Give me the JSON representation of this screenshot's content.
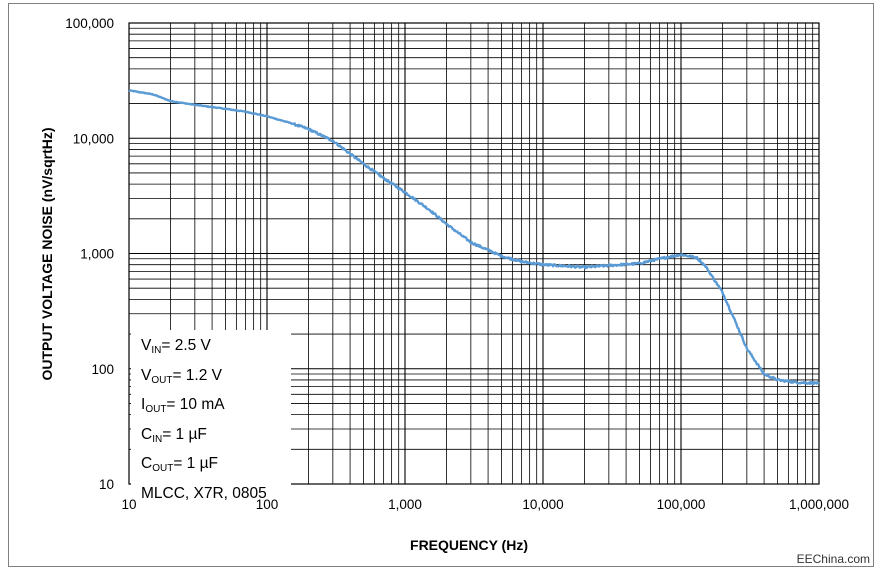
{
  "chart_data": {
    "type": "line",
    "title": "",
    "xlabel": "FREQUENCY (Hz)",
    "ylabel": "OUTPUT VOLTAGE NOISE (nV/sqrtHz)",
    "xscale": "log",
    "yscale": "log",
    "xlim": [
      10,
      1000000
    ],
    "ylim": [
      10,
      100000
    ],
    "x_tick_labels": [
      "10",
      "100",
      "1,000",
      "10,000",
      "100,000",
      "1,000,000"
    ],
    "y_tick_labels": [
      "100,000",
      "10,000",
      "1,000",
      "100",
      "10"
    ],
    "grid": true,
    "legend_position": "bottom-left",
    "series": [
      {
        "name": "Output voltage noise",
        "color": "#5B9BD5",
        "x": [
          10,
          15,
          20,
          30,
          50,
          70,
          100,
          150,
          200,
          300,
          500,
          700,
          1000,
          1500,
          2000,
          3000,
          5000,
          7000,
          10000,
          20000,
          50000,
          70000,
          100000,
          130000,
          150000,
          200000,
          250000,
          300000,
          400000,
          500000,
          700000,
          1000000
        ],
        "y": [
          26000,
          24000,
          21000,
          19500,
          18000,
          17000,
          15500,
          13500,
          12000,
          9500,
          6000,
          4500,
          3400,
          2400,
          1800,
          1250,
          950,
          850,
          800,
          760,
          820,
          900,
          980,
          920,
          780,
          460,
          250,
          150,
          90,
          80,
          76,
          75
        ]
      }
    ]
  },
  "annotation": {
    "lines": [
      {
        "base": "V",
        "sub": "IN",
        "rest": "= 2.5 V"
      },
      {
        "base": "V",
        "sub": "OUT",
        "rest": "= 1.2 V"
      },
      {
        "base": "I",
        "sub": "OUT",
        "rest": "= 10 mA"
      },
      {
        "base": "C",
        "sub": "IN",
        "rest": "= 1 µF"
      },
      {
        "base": "C",
        "sub": "OUT",
        "rest": "= 1 µF"
      },
      {
        "base": "MLCC, X7R, 0805",
        "sub": "",
        "rest": ""
      }
    ]
  },
  "watermark": "EEChina.com"
}
